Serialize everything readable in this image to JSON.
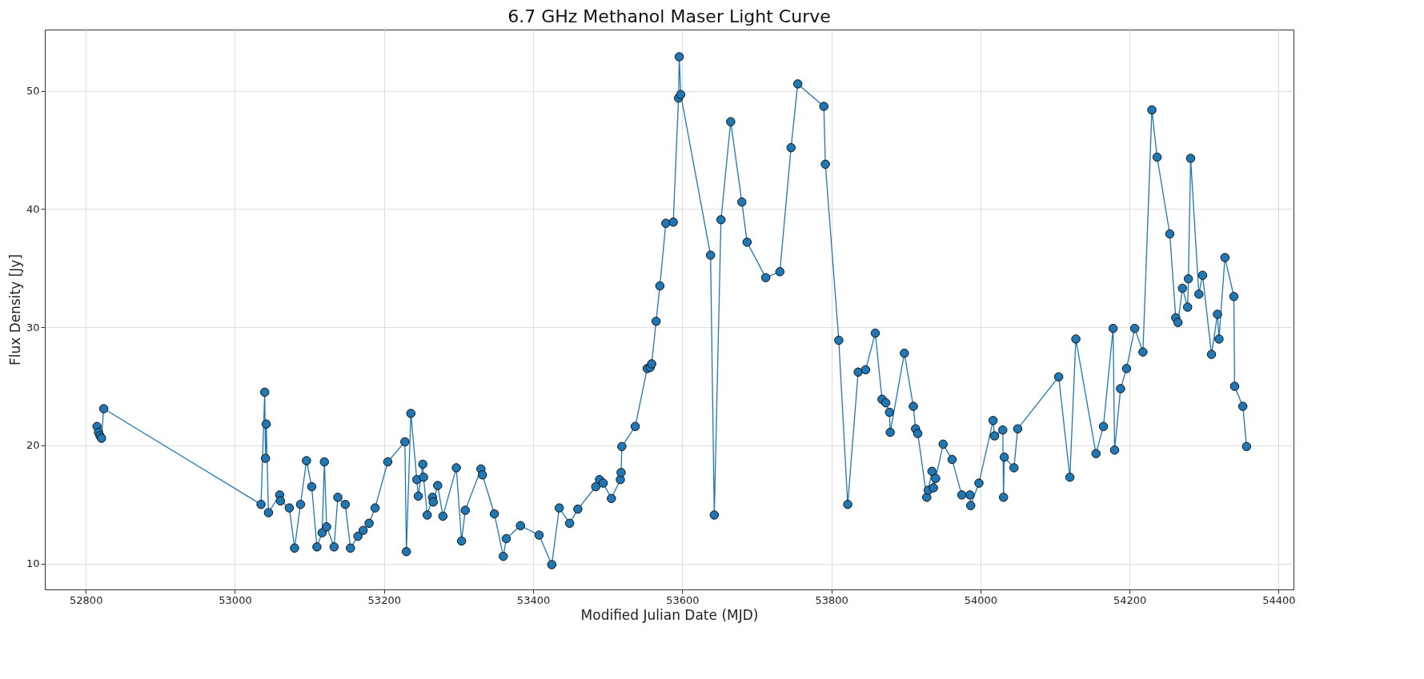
{
  "chart_data": {
    "type": "line",
    "title": "6.7 GHz Methanol Maser Light Curve",
    "xlabel": "Modified Julian Date (MJD)",
    "ylabel": "Flux Density [Jy]",
    "x": [
      52815,
      52817,
      52819,
      52821,
      52824,
      53035,
      53040,
      53041,
      53042,
      53045,
      53060,
      53061,
      53073,
      53080,
      53088,
      53096,
      53103,
      53110,
      53117,
      53120,
      53123,
      53133,
      53138,
      53148,
      53155,
      53165,
      53172,
      53180,
      53188,
      53205,
      53228,
      53230,
      53236,
      53244,
      53246,
      53252,
      53253,
      53258,
      53265,
      53266,
      53272,
      53279,
      53297,
      53304,
      53309,
      53330,
      53332,
      53348,
      53360,
      53364,
      53383,
      53408,
      53425,
      53435,
      53449,
      53460,
      53484,
      53489,
      53494,
      53505,
      53517,
      53518,
      53519,
      53537,
      53553,
      53557,
      53559,
      53565,
      53570,
      53578,
      53588,
      53595,
      53596,
      53598,
      53638,
      53643,
      53652,
      53665,
      53680,
      53687,
      53712,
      53731,
      53746,
      53755,
      53790,
      53792,
      53810,
      53822,
      53836,
      53846,
      53859,
      53868,
      53873,
      53878,
      53879,
      53898,
      53910,
      53913,
      53916,
      53928,
      53930,
      53935,
      53937,
      53940,
      53950,
      53962,
      53975,
      53986,
      53987,
      53998,
      54017,
      54019,
      54030,
      54031,
      54032,
      54045,
      54050,
      54105,
      54120,
      54128,
      54155,
      54165,
      54178,
      54180,
      54188,
      54196,
      54207,
      54218,
      54230,
      54237,
      54254,
      54262,
      54265,
      54271,
      54278,
      54279,
      54282,
      54293,
      54298,
      54310,
      54318,
      54320,
      54328,
      54340,
      54341,
      54352,
      54357
    ],
    "series": [
      {
        "color": "#1f77b4",
        "values": [
          21.6,
          21.1,
          20.8,
          20.6,
          23.1,
          15.0,
          24.5,
          18.9,
          21.8,
          14.3,
          15.8,
          15.3,
          14.7,
          11.3,
          15.0,
          18.7,
          16.5,
          11.4,
          12.6,
          18.6,
          13.1,
          11.4,
          15.6,
          15.0,
          11.3,
          12.3,
          12.8,
          13.4,
          14.7,
          18.6,
          20.3,
          11.0,
          22.7,
          17.1,
          15.7,
          18.4,
          17.3,
          14.1,
          15.6,
          15.2,
          16.6,
          14.0,
          18.1,
          11.9,
          14.5,
          18.0,
          17.5,
          14.2,
          10.6,
          12.1,
          13.2,
          12.4,
          9.9,
          14.7,
          13.4,
          14.6,
          16.5,
          17.1,
          16.8,
          15.5,
          17.1,
          17.7,
          19.9,
          21.6,
          26.5,
          26.6,
          26.9,
          30.5,
          33.5,
          38.8,
          38.9,
          49.4,
          52.9,
          49.7,
          36.1,
          14.1,
          39.1,
          47.4,
          40.6,
          37.2,
          34.2,
          34.7,
          45.2,
          50.6,
          48.7,
          43.8,
          28.9,
          15.0,
          26.2,
          26.4,
          29.5,
          23.9,
          23.6,
          22.8,
          21.1,
          27.8,
          23.3,
          21.4,
          21.0,
          15.6,
          16.2,
          17.8,
          16.4,
          17.2,
          20.1,
          18.8,
          15.8,
          15.8,
          14.9,
          16.8,
          22.1,
          20.8,
          21.3,
          15.6,
          19.0,
          18.1,
          21.4,
          25.8,
          17.3,
          29.0,
          19.3,
          21.6,
          29.9,
          19.6,
          24.8,
          26.5,
          29.9,
          27.9,
          48.4,
          44.4,
          37.9,
          30.8,
          30.4,
          33.3,
          31.7,
          34.1,
          44.3,
          32.8,
          34.4,
          27.7,
          31.1,
          29.0,
          35.9,
          32.6,
          25.0,
          23.3,
          19.9
        ]
      }
    ],
    "xlim": [
      52745,
      54420
    ],
    "ylim": [
      7.8,
      55.2
    ],
    "xticks": [
      52800,
      53000,
      53200,
      53400,
      53600,
      53800,
      54000,
      54200,
      54400
    ],
    "yticks": [
      10,
      20,
      30,
      40,
      50
    ],
    "grid": true,
    "marker": "circle",
    "line_style": "solid"
  }
}
